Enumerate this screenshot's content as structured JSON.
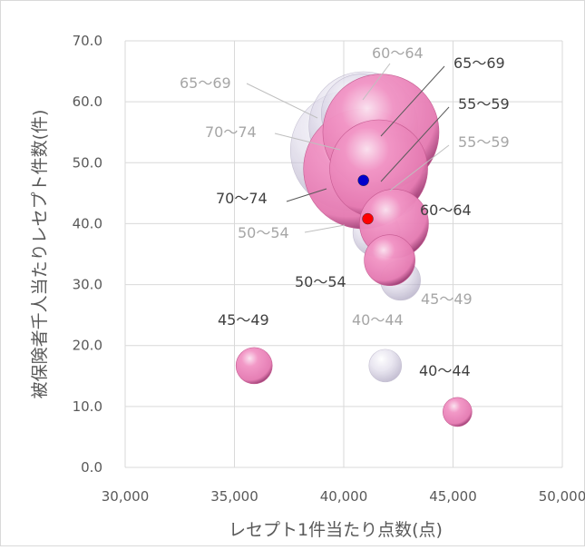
{
  "chart_data": {
    "type": "bubble",
    "xlabel": "レセプト1件当たり点数(点)",
    "ylabel": "被保険者千人当たりレセプト件数(件)",
    "xlim": [
      30000,
      50000
    ],
    "ylim": [
      0,
      70
    ],
    "x_ticks": [
      "30,000",
      "35,000",
      "40,000",
      "45,000",
      "50,000"
    ],
    "y_ticks": [
      "0.0",
      "10.0",
      "20.0",
      "30.0",
      "40.0",
      "50.0",
      "60.0",
      "70.0"
    ],
    "grid": true,
    "series": [
      {
        "style": "dark",
        "points": [
          {
            "label": "45〜49",
            "x": 35900,
            "y": 16.7,
            "size": 1.0
          },
          {
            "label": "40〜44",
            "x": 45200,
            "y": 9.1,
            "size": 0.8
          },
          {
            "label": "50〜54",
            "x": 42100,
            "y": 34.0,
            "size": 1.4
          },
          {
            "label": "60〜64",
            "x": 42300,
            "y": 40.0,
            "size": 1.9
          },
          {
            "label": "55〜59",
            "x": 41600,
            "y": 49.0,
            "size": 2.7
          },
          {
            "label": "65〜69",
            "x": 41700,
            "y": 55.0,
            "size": 3.2
          },
          {
            "label": "70〜74",
            "x": 40900,
            "y": 49.0,
            "size": 3.3
          }
        ]
      },
      {
        "style": "light",
        "points": [
          {
            "label": "40〜44",
            "x": 41900,
            "y": 16.7,
            "size": 0.9
          },
          {
            "label": "45〜49",
            "x": 42600,
            "y": 30.7,
            "size": 1.1
          },
          {
            "label": "50〜54",
            "x": 41500,
            "y": 38.5,
            "size": 1.3
          },
          {
            "label": "55〜59",
            "x": 42400,
            "y": 44.5,
            "size": 1.1
          },
          {
            "label": "60〜64",
            "x": 40800,
            "y": 58.0,
            "size": 2.2
          },
          {
            "label": "65〜69",
            "x": 40900,
            "y": 56.0,
            "size": 3.0
          },
          {
            "label": "70〜74",
            "x": 40300,
            "y": 52.0,
            "size": 3.3
          }
        ]
      }
    ],
    "markers": [
      {
        "x": 40900,
        "y": 47.1,
        "color": "#0000cc"
      },
      {
        "x": 41100,
        "y": 40.8,
        "color": "#ff0000"
      }
    ]
  }
}
